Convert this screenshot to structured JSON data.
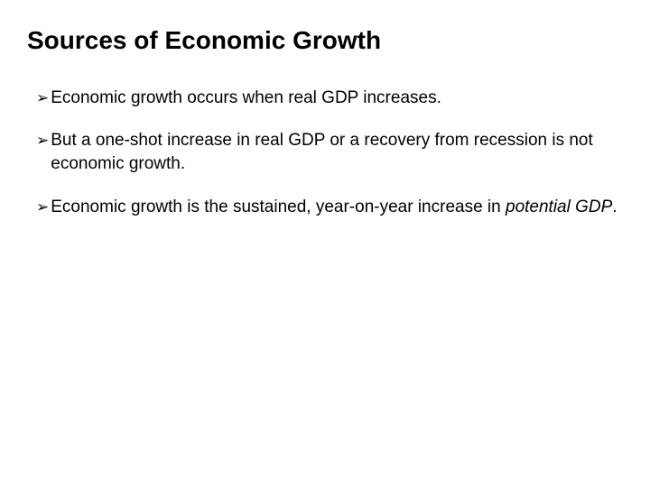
{
  "slide": {
    "title": "Sources of Economic Growth",
    "title_fontsize": 28,
    "title_fontweight": "bold",
    "background_color": "#ffffff",
    "text_color": "#000000",
    "bullet_marker": "➢",
    "bullet_fontsize": 19,
    "bullets": [
      {
        "text": "Economic growth occurs when real GDP increases."
      },
      {
        "text": "But a one-shot increase in real GDP or a recovery from recession is not economic growth."
      },
      {
        "prefix": "Economic growth is the sustained, year-on-year increase in ",
        "italic": "potential GDP",
        "suffix": "."
      }
    ]
  }
}
